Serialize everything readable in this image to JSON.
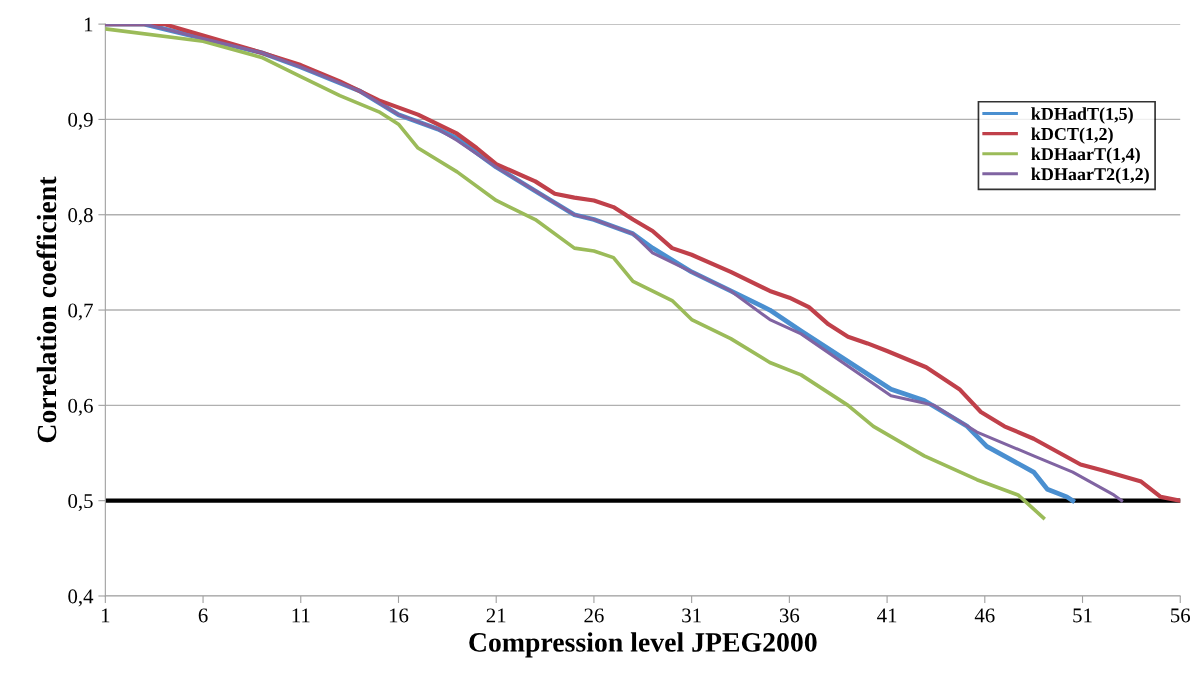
{
  "chart_data": {
    "type": "line",
    "xlabel": "Compression level JPEG2000",
    "ylabel": "Correlation coefficient",
    "xlim": [
      1,
      56
    ],
    "xticks": [
      1,
      6,
      11,
      16,
      21,
      26,
      31,
      36,
      41,
      46,
      51,
      56
    ],
    "ylim": [
      0.4,
      1
    ],
    "yticks": [
      {
        "value": 0.4,
        "label": "0,4"
      },
      {
        "value": 0.5,
        "label": "0,5"
      },
      {
        "value": 0.6,
        "label": "0,6"
      },
      {
        "value": 0.7,
        "label": "0,7"
      },
      {
        "value": 0.8,
        "label": "0,8"
      },
      {
        "value": 0.9,
        "label": "0,9"
      },
      1
    ],
    "grid": "y",
    "legend": "top right",
    "line_style": "solid",
    "marker": "none",
    "ref_lines": [
      {
        "axis": "y",
        "value": 0.5,
        "color": "#000000",
        "line_style": "solid"
      }
    ],
    "series": [
      {
        "name": "kDHadT(1,5)",
        "color": "#4a8fd0",
        "x": [
          1,
          3,
          6,
          9,
          11,
          14,
          16,
          18,
          19,
          21,
          23,
          25,
          26,
          28,
          29,
          31,
          33,
          35,
          36.6,
          41.2,
          42.9,
          45.1,
          46.1,
          48.5,
          49.2,
          50.2,
          50.5
        ],
        "values": [
          1.0,
          1.0,
          0.985,
          0.97,
          0.955,
          0.93,
          0.905,
          0.89,
          0.88,
          0.85,
          0.825,
          0.8,
          0.795,
          0.78,
          0.765,
          0.74,
          0.72,
          0.7,
          0.678,
          0.617,
          0.605,
          0.578,
          0.557,
          0.53,
          0.512,
          0.504,
          0.5
        ]
      },
      {
        "name": "kDCT(1,2)",
        "color": "#c0404a",
        "x": [
          1,
          4,
          6,
          9,
          11,
          13,
          15,
          17,
          19,
          20,
          21,
          23,
          24,
          25,
          26,
          27,
          28,
          29,
          30,
          31,
          33,
          35,
          36,
          37,
          38,
          39,
          40,
          41,
          43,
          44.7,
          45.8,
          47,
          48.5,
          50.9,
          52,
          54,
          55,
          56
        ],
        "values": [
          1.0,
          1.0,
          0.988,
          0.97,
          0.957,
          0.94,
          0.92,
          0.905,
          0.885,
          0.87,
          0.853,
          0.835,
          0.822,
          0.818,
          0.815,
          0.808,
          0.795,
          0.783,
          0.765,
          0.758,
          0.74,
          0.72,
          0.713,
          0.703,
          0.685,
          0.672,
          0.665,
          0.657,
          0.64,
          0.617,
          0.593,
          0.578,
          0.565,
          0.538,
          0.532,
          0.52,
          0.504,
          0.5
        ]
      },
      {
        "name": "kDHaarT(1,4)",
        "color": "#9bbb59",
        "x": [
          1,
          6,
          9,
          11,
          13,
          15,
          16,
          17,
          19,
          21,
          23,
          25,
          26,
          27,
          28,
          30,
          31,
          33,
          35,
          36.6,
          39,
          40.3,
          42.9,
          45.6,
          47.7,
          49
        ],
        "values": [
          0.995,
          0.982,
          0.965,
          0.945,
          0.925,
          0.908,
          0.895,
          0.87,
          0.845,
          0.815,
          0.795,
          0.765,
          0.762,
          0.755,
          0.73,
          0.71,
          0.69,
          0.67,
          0.645,
          0.632,
          0.6,
          0.578,
          0.547,
          0.522,
          0.506,
          0.482
        ]
      },
      {
        "name": "kDHaarT2(1,2)",
        "color": "#8064a2",
        "x": [
          1,
          3,
          6,
          9,
          11,
          14,
          16,
          18,
          19,
          21,
          23,
          25,
          26,
          28,
          29,
          31,
          33,
          35,
          36.6,
          41.2,
          43.4,
          45.6,
          48.5,
          50.5,
          52.6,
          53
        ],
        "values": [
          1.0,
          1.0,
          0.985,
          0.97,
          0.955,
          0.93,
          0.905,
          0.89,
          0.878,
          0.85,
          0.825,
          0.8,
          0.795,
          0.78,
          0.76,
          0.74,
          0.72,
          0.69,
          0.675,
          0.61,
          0.6,
          0.572,
          0.547,
          0.53,
          0.506,
          0.5
        ]
      }
    ]
  }
}
